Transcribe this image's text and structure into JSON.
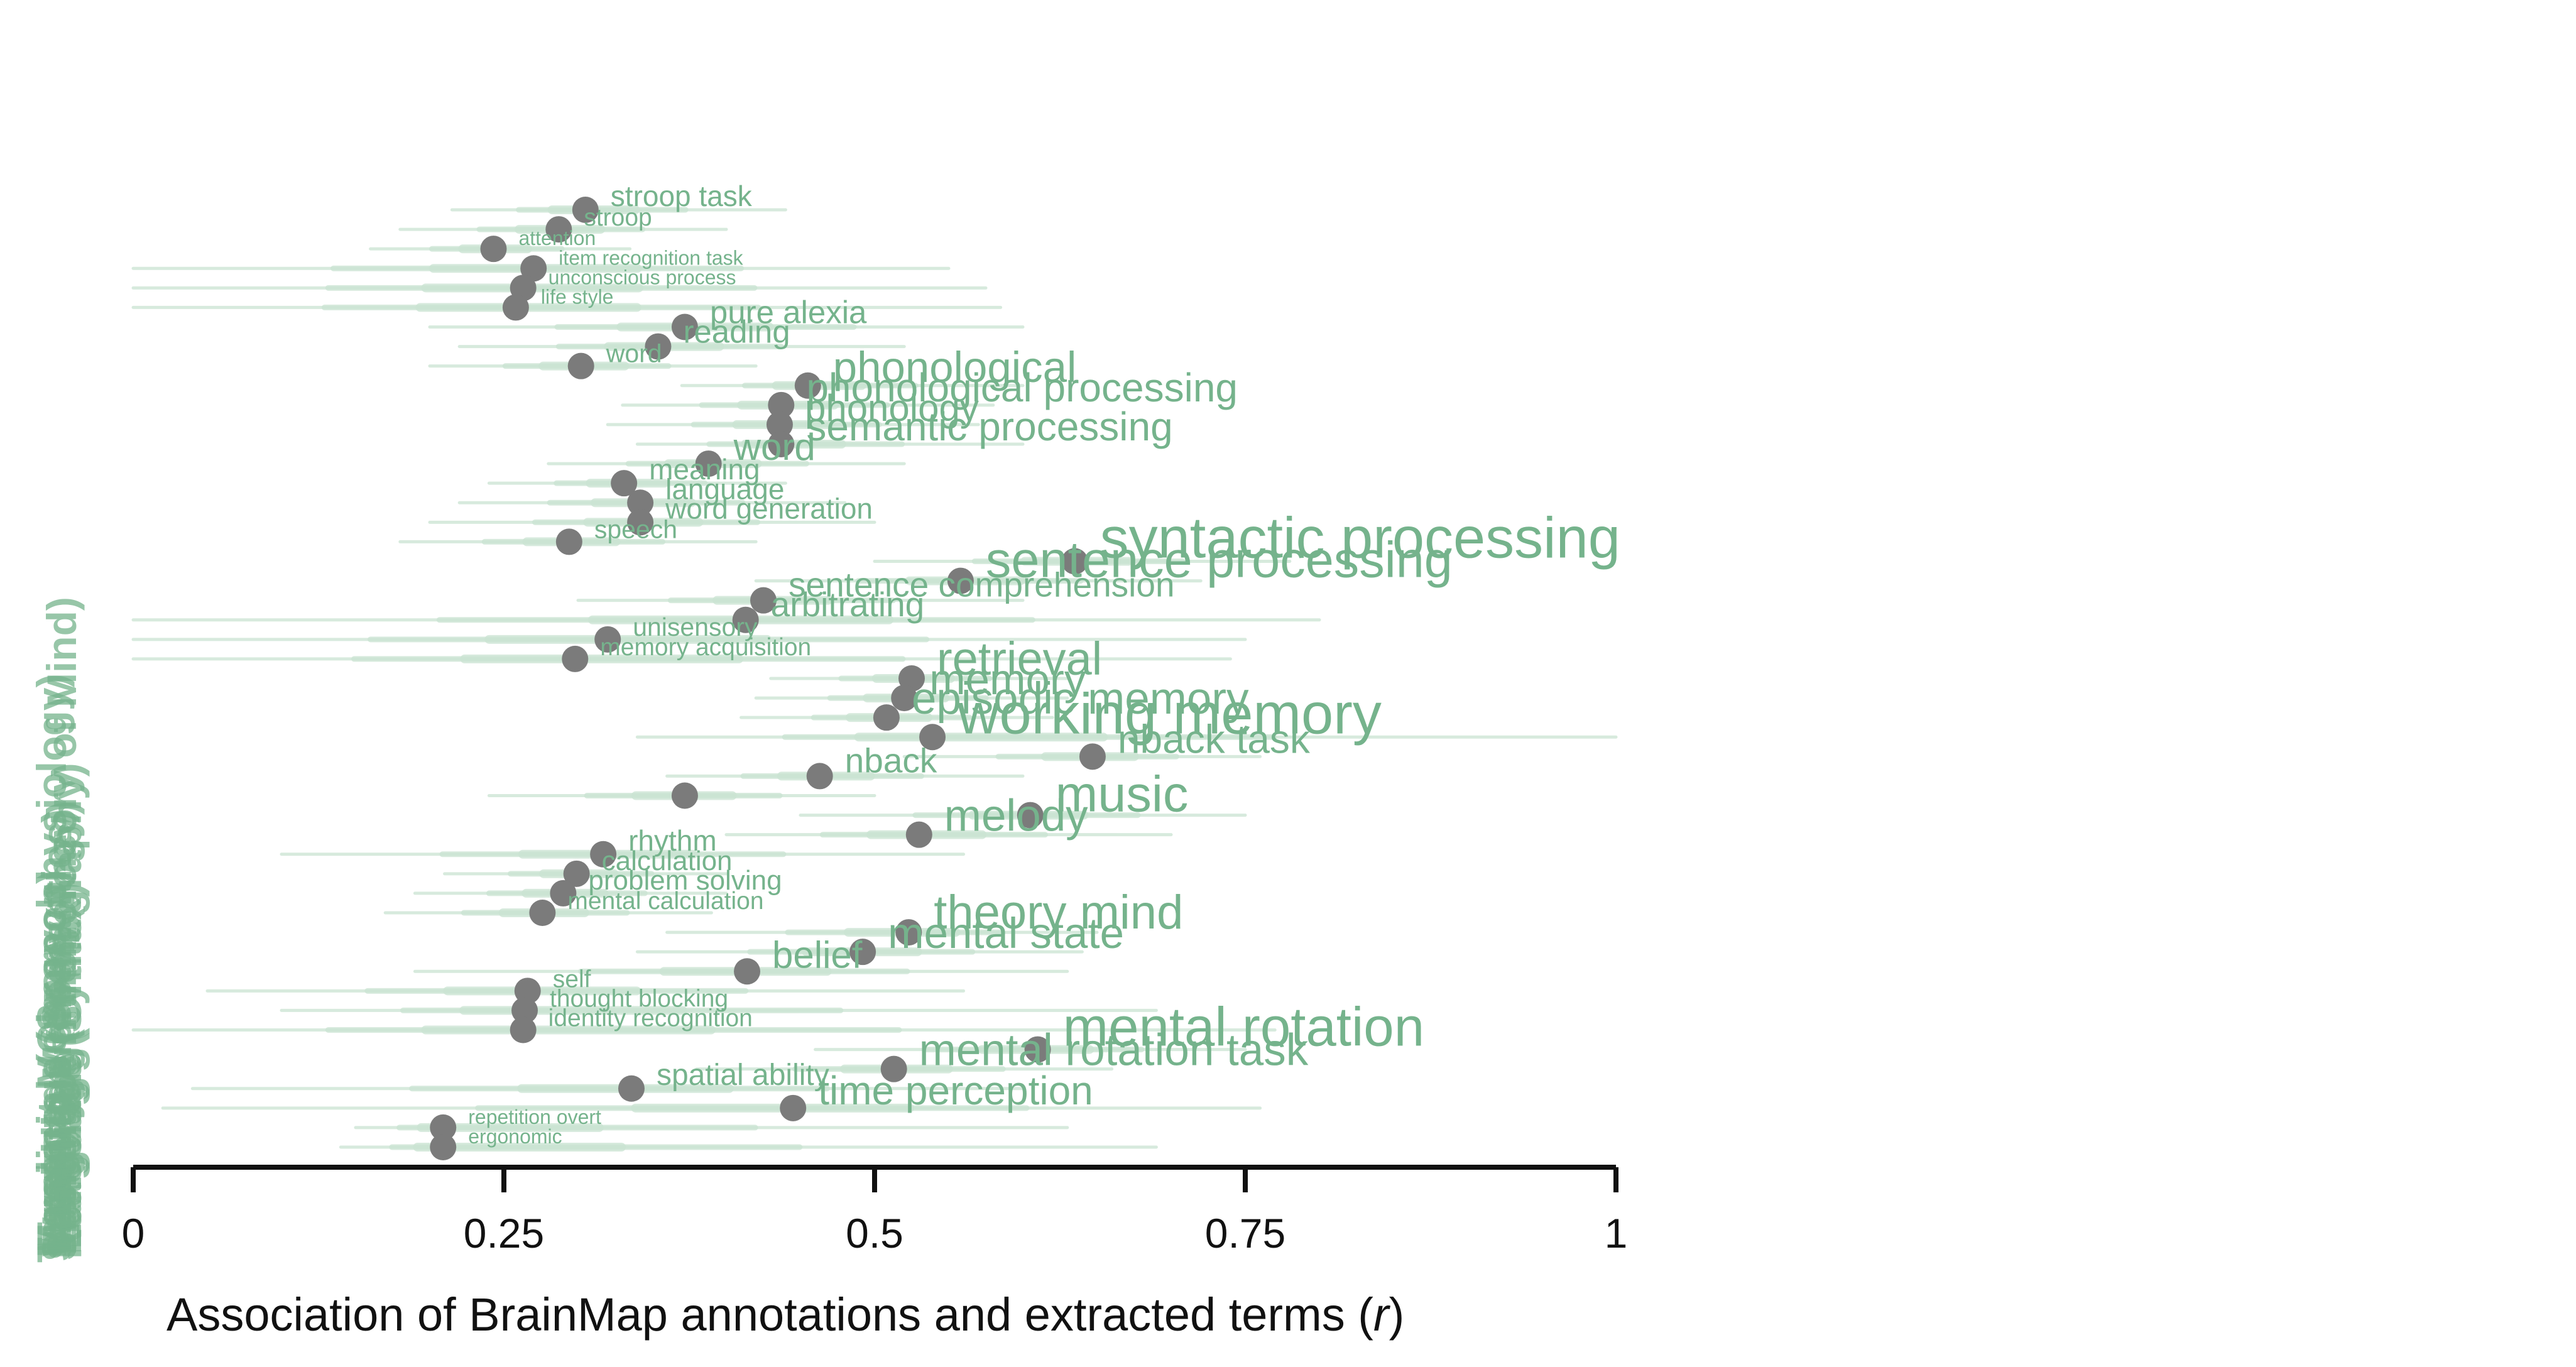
{
  "colors": {
    "term": "#75b38c",
    "dot": "#7b7b7b",
    "ci": "#c9e3d2",
    "axis": "#111111"
  },
  "chart_data": {
    "type": "scatter",
    "title": "",
    "xlabel_prefix": "Association of BrainMap annotations and extracted terms (",
    "xlabel_var": "r",
    "xlabel_suffix": ")",
    "xlim": [
      0,
      1
    ],
    "xticks": [
      {
        "value": 0,
        "label": "0"
      },
      {
        "value": 0.25,
        "label": "0.25"
      },
      {
        "value": 0.5,
        "label": "0.5"
      },
      {
        "value": 0.75,
        "label": "0.75"
      },
      {
        "value": 1,
        "label": "1"
      }
    ],
    "ylabels": [
      "Temporal (Chronophysiology)",
      "Spatial",
      "Social Cognition (Theory of Mind)",
      "Reasoning",
      "Music",
      "Working Memory",
      "Memory",
      "Language (Syntax)",
      "Language (Speech)",
      "Language (Semantics)",
      "Language (Phonology)",
      "Language (Orthography)",
      "Explicit Memory",
      "Attention"
    ],
    "points": [
      {
        "term": "stroop task",
        "r": 0.305,
        "lo": 0.215,
        "hi": 0.44,
        "size": 1.0
      },
      {
        "term": "stroop",
        "r": 0.287,
        "lo": 0.18,
        "hi": 0.4,
        "size": 0.85
      },
      {
        "term": "attention",
        "r": 0.243,
        "lo": 0.16,
        "hi": 0.335,
        "size": 0.7
      },
      {
        "term": "item recognition task",
        "r": 0.27,
        "lo": 0.0,
        "hi": 0.55,
        "size": 0.7
      },
      {
        "term": "unconscious process",
        "r": 0.263,
        "lo": 0.0,
        "hi": 0.575,
        "size": 0.7
      },
      {
        "term": "life style",
        "r": 0.258,
        "lo": 0.0,
        "hi": 0.585,
        "size": 0.7
      },
      {
        "term": "pure alexia",
        "r": 0.372,
        "lo": 0.2,
        "hi": 0.6,
        "size": 1.1
      },
      {
        "term": "reading",
        "r": 0.354,
        "lo": 0.22,
        "hi": 0.52,
        "size": 1.1
      },
      {
        "term": "word",
        "r": 0.302,
        "lo": 0.2,
        "hi": 0.42,
        "size": 0.9
      },
      {
        "term": "phonological",
        "r": 0.455,
        "lo": 0.37,
        "hi": 0.6,
        "size": 1.5
      },
      {
        "term": "phonological processing",
        "r": 0.437,
        "lo": 0.33,
        "hi": 0.58,
        "size": 1.4
      },
      {
        "term": "phonology",
        "r": 0.436,
        "lo": 0.32,
        "hi": 0.57,
        "size": 1.3
      },
      {
        "term": "semantic processing",
        "r": 0.437,
        "lo": 0.34,
        "hi": 0.6,
        "size": 1.4
      },
      {
        "term": "word",
        "r": 0.388,
        "lo": 0.28,
        "hi": 0.52,
        "size": 1.3
      },
      {
        "term": "meaning",
        "r": 0.331,
        "lo": 0.24,
        "hi": 0.44,
        "size": 1.0
      },
      {
        "term": "language",
        "r": 0.342,
        "lo": 0.22,
        "hi": 0.48,
        "size": 1.0
      },
      {
        "term": "word generation",
        "r": 0.342,
        "lo": 0.2,
        "hi": 0.5,
        "size": 1.0
      },
      {
        "term": "speech",
        "r": 0.294,
        "lo": 0.18,
        "hi": 0.42,
        "size": 0.9
      },
      {
        "term": "syntactic processing",
        "r": 0.635,
        "lo": 0.5,
        "hi": 0.78,
        "size": 2.0
      },
      {
        "term": "sentence processing",
        "r": 0.558,
        "lo": 0.42,
        "hi": 0.72,
        "size": 1.75
      },
      {
        "term": "sentence comprehension",
        "r": 0.425,
        "lo": 0.3,
        "hi": 0.6,
        "size": 1.2
      },
      {
        "term": "arbitrating",
        "r": 0.413,
        "lo": 0.0,
        "hi": 0.8,
        "size": 1.2
      },
      {
        "term": "unisensory",
        "r": 0.32,
        "lo": 0.0,
        "hi": 0.75,
        "size": 0.9
      },
      {
        "term": "memory acquisition",
        "r": 0.298,
        "lo": 0.0,
        "hi": 0.74,
        "size": 0.85
      },
      {
        "term": "retrieval",
        "r": 0.525,
        "lo": 0.43,
        "hi": 0.63,
        "size": 1.6
      },
      {
        "term": "memory",
        "r": 0.52,
        "lo": 0.42,
        "hi": 0.63,
        "size": 1.5
      },
      {
        "term": "episodic memory",
        "r": 0.508,
        "lo": 0.41,
        "hi": 0.62,
        "size": 1.55
      },
      {
        "term": "working memory",
        "r": 0.539,
        "lo": 0.34,
        "hi": 1.0,
        "size": 2.0
      },
      {
        "term": "nback task",
        "r": 0.647,
        "lo": 0.52,
        "hi": 0.76,
        "size": 1.4
      },
      {
        "term": "nback",
        "r": 0.463,
        "lo": 0.36,
        "hi": 0.6,
        "size": 1.2
      },
      {
        "term": "",
        "r": 0.372,
        "lo": 0.24,
        "hi": 0.5,
        "size": 1.0
      },
      {
        "term": "music",
        "r": 0.605,
        "lo": 0.45,
        "hi": 0.75,
        "size": 1.75
      },
      {
        "term": "melody",
        "r": 0.53,
        "lo": 0.4,
        "hi": 0.7,
        "size": 1.55
      },
      {
        "term": "rhythm",
        "r": 0.317,
        "lo": 0.1,
        "hi": 0.56,
        "size": 1.0
      },
      {
        "term": "calculation",
        "r": 0.299,
        "lo": 0.21,
        "hi": 0.4,
        "size": 0.95
      },
      {
        "term": "problem solving",
        "r": 0.29,
        "lo": 0.19,
        "hi": 0.4,
        "size": 0.95
      },
      {
        "term": "mental calculation",
        "r": 0.276,
        "lo": 0.17,
        "hi": 0.39,
        "size": 0.85
      },
      {
        "term": "theory mind",
        "r": 0.523,
        "lo": 0.36,
        "hi": 0.65,
        "size": 1.65
      },
      {
        "term": "mental state",
        "r": 0.492,
        "lo": 0.34,
        "hi": 0.64,
        "size": 1.5
      },
      {
        "term": "belief",
        "r": 0.414,
        "lo": 0.19,
        "hi": 0.63,
        "size": 1.3
      },
      {
        "term": "self",
        "r": 0.266,
        "lo": 0.05,
        "hi": 0.56,
        "size": 0.85
      },
      {
        "term": "thought blocking",
        "r": 0.264,
        "lo": 0.1,
        "hi": 0.69,
        "size": 0.85
      },
      {
        "term": "identity recognition",
        "r": 0.263,
        "lo": 0.0,
        "hi": 0.77,
        "size": 0.85
      },
      {
        "term": "mental rotation",
        "r": 0.61,
        "lo": 0.46,
        "hi": 0.75,
        "size": 1.9
      },
      {
        "term": "mental rotation task",
        "r": 0.513,
        "lo": 0.38,
        "hi": 0.66,
        "size": 1.55
      },
      {
        "term": "spatial ability",
        "r": 0.336,
        "lo": 0.04,
        "hi": 0.6,
        "size": 1.05
      },
      {
        "term": "time perception",
        "r": 0.445,
        "lo": 0.02,
        "hi": 0.76,
        "size": 1.4
      },
      {
        "term": "repetition overt",
        "r": 0.209,
        "lo": 0.15,
        "hi": 0.63,
        "size": 0.7
      },
      {
        "term": "ergonomic",
        "r": 0.209,
        "lo": 0.14,
        "hi": 0.69,
        "size": 0.7
      }
    ]
  }
}
